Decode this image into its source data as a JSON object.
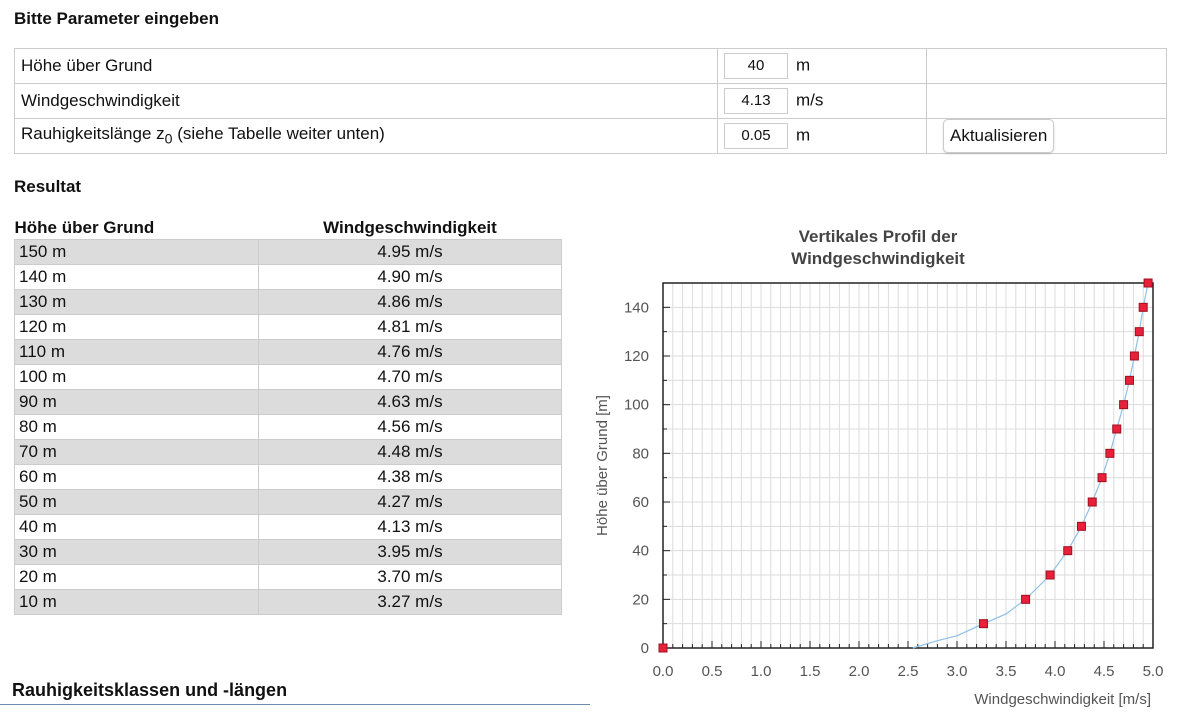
{
  "heading": "Bitte Parameter eingeben",
  "params": [
    {
      "label": "Höhe über Grund",
      "label_sub": "",
      "label_rest": "",
      "value": "40",
      "unit": "m"
    },
    {
      "label": "Windgeschwindigkeit",
      "label_sub": "",
      "label_rest": "",
      "value": "4.13",
      "unit": "m/s"
    },
    {
      "label": "Rauhigkeitslänge z",
      "label_sub": "0",
      "label_rest": " (siehe Tabelle weiter unten)",
      "value": "0.05",
      "unit": "m"
    }
  ],
  "update_button": "Aktualisieren",
  "result_heading": "Resultat",
  "result_table": {
    "headers": [
      "Höhe über Grund",
      "Windgeschwindigkeit"
    ],
    "rows": [
      [
        "150 m",
        "4.95 m/s"
      ],
      [
        "140 m",
        "4.90 m/s"
      ],
      [
        "130 m",
        "4.86 m/s"
      ],
      [
        "120 m",
        "4.81 m/s"
      ],
      [
        "110 m",
        "4.76 m/s"
      ],
      [
        "100 m",
        "4.70 m/s"
      ],
      [
        "90 m",
        "4.63 m/s"
      ],
      [
        "80 m",
        "4.56 m/s"
      ],
      [
        "70 m",
        "4.48 m/s"
      ],
      [
        "60 m",
        "4.38 m/s"
      ],
      [
        "50 m",
        "4.27 m/s"
      ],
      [
        "40 m",
        "4.13 m/s"
      ],
      [
        "30 m",
        "3.95 m/s"
      ],
      [
        "20 m",
        "3.70 m/s"
      ],
      [
        "10 m",
        "3.27 m/s"
      ]
    ]
  },
  "section_heading": "Rauhigkeitsklassen und -längen",
  "chart_data": {
    "type": "line",
    "title": "Vertikales Profil der Windgeschwindigkeit",
    "title_lines": [
      "Vertikales Profil der",
      "Windgeschwindigkeit"
    ],
    "xlabel": "Windgeschwindigkeit [m/s]",
    "ylabel": "Höhe über Grund [m]",
    "xlim": [
      0,
      5
    ],
    "ylim": [
      0,
      150
    ],
    "xticks": [
      "0.0",
      "0.5",
      "1.0",
      "1.5",
      "2.0",
      "2.5",
      "3.0",
      "3.5",
      "4.0",
      "4.5",
      "5.0"
    ],
    "yticks": [
      "0",
      "20",
      "40",
      "60",
      "80",
      "100",
      "120",
      "140"
    ],
    "grid": true,
    "marker_color": "#e8203a",
    "line_color": "#8fc0e8",
    "points": [
      [
        0,
        0
      ],
      [
        3.27,
        10
      ],
      [
        3.7,
        20
      ],
      [
        3.95,
        30
      ],
      [
        4.13,
        40
      ],
      [
        4.27,
        50
      ],
      [
        4.38,
        60
      ],
      [
        4.48,
        70
      ],
      [
        4.56,
        80
      ],
      [
        4.63,
        90
      ],
      [
        4.7,
        100
      ],
      [
        4.76,
        110
      ],
      [
        4.81,
        120
      ],
      [
        4.86,
        130
      ],
      [
        4.9,
        140
      ],
      [
        4.95,
        150
      ]
    ],
    "curve": [
      [
        2.55,
        0
      ],
      [
        2.8,
        3
      ],
      [
        3.0,
        5
      ],
      [
        3.27,
        10
      ],
      [
        3.5,
        14
      ],
      [
        3.7,
        20
      ],
      [
        3.95,
        30
      ],
      [
        4.13,
        40
      ],
      [
        4.27,
        50
      ],
      [
        4.38,
        60
      ],
      [
        4.48,
        70
      ],
      [
        4.56,
        80
      ],
      [
        4.63,
        90
      ],
      [
        4.7,
        100
      ],
      [
        4.76,
        110
      ],
      [
        4.81,
        120
      ],
      [
        4.86,
        130
      ],
      [
        4.9,
        140
      ],
      [
        4.95,
        150
      ]
    ]
  }
}
